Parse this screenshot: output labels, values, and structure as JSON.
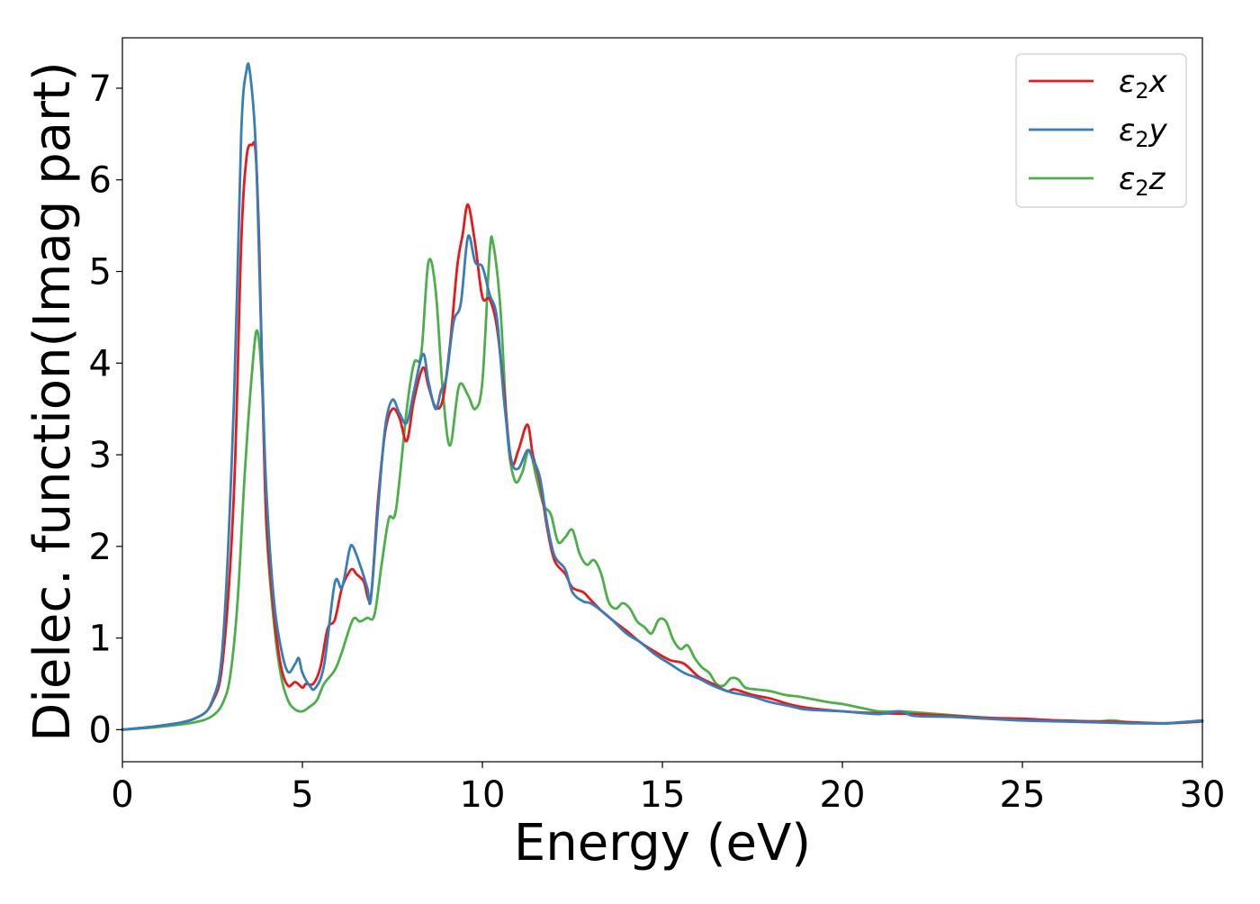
{
  "chart_data": {
    "type": "line",
    "xlabel": "Energy (eV)",
    "ylabel": "Dielec. function(Imag part)",
    "xlim": [
      0,
      30
    ],
    "ylim": [
      -0.35,
      7.55
    ],
    "xticks": [
      0,
      5,
      10,
      15,
      20,
      25,
      30
    ],
    "yticks": [
      0,
      1,
      2,
      3,
      4,
      5,
      6,
      7
    ],
    "grid": false,
    "legend_position": "top-right",
    "series": [
      {
        "name": "ε₂x",
        "legend_main": "ε",
        "legend_sub": "2",
        "legend_tail": "x",
        "color": "#e41a1c",
        "x": [
          0,
          1,
          2,
          2.5,
          2.8,
          3.1,
          3.3,
          3.45,
          3.6,
          3.7,
          3.8,
          3.9,
          4.0,
          4.2,
          4.4,
          4.6,
          4.8,
          5.0,
          5.1,
          5.3,
          5.5,
          5.7,
          5.9,
          6.1,
          6.3,
          6.4,
          6.5,
          6.7,
          6.9,
          7.1,
          7.3,
          7.5,
          7.7,
          7.9,
          8.1,
          8.35,
          8.5,
          8.7,
          8.9,
          9.1,
          9.3,
          9.45,
          9.6,
          9.8,
          10.0,
          10.2,
          10.4,
          10.6,
          10.8,
          11.0,
          11.25,
          11.4,
          11.6,
          11.8,
          12.0,
          12.3,
          12.5,
          12.8,
          13.0,
          13.3,
          13.6,
          14.0,
          14.4,
          14.8,
          15.2,
          15.6,
          16.0,
          16.4,
          16.8,
          17.0,
          17.5,
          18.0,
          18.5,
          19.0,
          20.0,
          21.0,
          22.0,
          23.0,
          24.0,
          25.0,
          26.0,
          27.0,
          28.0,
          29.0,
          30.0
        ],
        "y": [
          0,
          0.04,
          0.12,
          0.3,
          0.8,
          2.6,
          5.3,
          6.25,
          6.38,
          6.3,
          5.3,
          3.6,
          2.3,
          1.3,
          0.7,
          0.48,
          0.52,
          0.46,
          0.5,
          0.5,
          0.68,
          1.1,
          1.2,
          1.55,
          1.72,
          1.75,
          1.7,
          1.62,
          1.45,
          2.5,
          3.25,
          3.5,
          3.4,
          3.15,
          3.6,
          3.95,
          3.75,
          3.52,
          3.6,
          4.2,
          5.05,
          5.4,
          5.73,
          5.3,
          4.72,
          4.7,
          4.4,
          3.7,
          2.92,
          3.05,
          3.33,
          3.0,
          2.7,
          2.2,
          1.85,
          1.7,
          1.55,
          1.5,
          1.42,
          1.3,
          1.2,
          1.08,
          0.95,
          0.85,
          0.76,
          0.72,
          0.58,
          0.5,
          0.42,
          0.44,
          0.38,
          0.34,
          0.28,
          0.24,
          0.2,
          0.18,
          0.17,
          0.15,
          0.13,
          0.12,
          0.1,
          0.09,
          0.08,
          0.07,
          0.09
        ]
      },
      {
        "name": "ε₂y",
        "legend_main": "ε",
        "legend_sub": "2",
        "legend_tail": "y",
        "color": "#377eb8",
        "x": [
          0,
          1,
          2,
          2.5,
          2.8,
          3.1,
          3.3,
          3.45,
          3.55,
          3.7,
          3.8,
          3.9,
          4.0,
          4.2,
          4.4,
          4.6,
          4.8,
          4.9,
          5.0,
          5.2,
          5.35,
          5.6,
          5.9,
          6.1,
          6.3,
          6.4,
          6.6,
          6.8,
          6.9,
          7.1,
          7.3,
          7.5,
          7.7,
          7.9,
          8.1,
          8.35,
          8.5,
          8.7,
          8.85,
          9.0,
          9.2,
          9.4,
          9.6,
          9.8,
          10.0,
          10.2,
          10.4,
          10.6,
          10.8,
          11.0,
          11.25,
          11.4,
          11.6,
          11.8,
          12.0,
          12.3,
          12.5,
          12.8,
          13.0,
          13.3,
          13.6,
          14.0,
          14.4,
          14.8,
          15.2,
          15.6,
          16.0,
          16.4,
          16.8,
          17.0,
          17.5,
          18.0,
          18.5,
          19.0,
          20.0,
          21.0,
          21.6,
          22.0,
          23.0,
          24.0,
          25.0,
          26.0,
          27.0,
          28.0,
          29.0,
          30.0
        ],
        "y": [
          0,
          0.04,
          0.12,
          0.32,
          1.0,
          3.6,
          6.5,
          7.2,
          7.15,
          6.4,
          5.1,
          3.7,
          2.6,
          1.45,
          0.9,
          0.63,
          0.72,
          0.78,
          0.62,
          0.48,
          0.45,
          0.7,
          1.6,
          1.55,
          1.95,
          2.0,
          1.8,
          1.55,
          1.42,
          2.4,
          3.3,
          3.6,
          3.45,
          3.35,
          3.7,
          4.1,
          3.8,
          3.5,
          3.7,
          3.85,
          4.45,
          4.65,
          5.38,
          5.1,
          5.05,
          4.75,
          4.5,
          3.6,
          2.95,
          2.85,
          3.05,
          2.95,
          2.75,
          2.25,
          1.9,
          1.75,
          1.5,
          1.4,
          1.38,
          1.3,
          1.2,
          1.05,
          0.95,
          0.82,
          0.72,
          0.62,
          0.56,
          0.48,
          0.42,
          0.4,
          0.36,
          0.3,
          0.26,
          0.22,
          0.2,
          0.17,
          0.2,
          0.15,
          0.14,
          0.12,
          0.1,
          0.09,
          0.08,
          0.07,
          0.07,
          0.1
        ]
      },
      {
        "name": "ε₂z",
        "legend_main": "ε",
        "legend_sub": "2",
        "legend_tail": "z",
        "color": "#4daf4a",
        "x": [
          0,
          1,
          2,
          2.5,
          2.8,
          3.0,
          3.2,
          3.4,
          3.6,
          3.75,
          3.9,
          4.0,
          4.2,
          4.4,
          4.6,
          4.8,
          5.0,
          5.2,
          5.4,
          5.6,
          5.9,
          6.1,
          6.4,
          6.6,
          6.8,
          7.0,
          7.2,
          7.4,
          7.6,
          7.9,
          8.1,
          8.3,
          8.5,
          8.7,
          8.9,
          9.1,
          9.35,
          9.6,
          9.8,
          10.0,
          10.2,
          10.3,
          10.5,
          10.7,
          10.9,
          11.1,
          11.3,
          11.5,
          11.7,
          11.9,
          12.1,
          12.3,
          12.5,
          12.7,
          12.9,
          13.1,
          13.3,
          13.5,
          13.7,
          13.9,
          14.1,
          14.3,
          14.5,
          14.7,
          14.9,
          15.1,
          15.3,
          15.5,
          15.7,
          15.9,
          16.1,
          16.3,
          16.5,
          16.7,
          16.9,
          17.1,
          17.3,
          17.6,
          18.0,
          18.4,
          18.8,
          19.2,
          19.6,
          20.0,
          20.5,
          21.0,
          21.6,
          22.0,
          23.0,
          24.0,
          25.0,
          26.0,
          27.0,
          27.5,
          28.0,
          29.0,
          30.0
        ],
        "y": [
          0,
          0.03,
          0.08,
          0.15,
          0.3,
          0.6,
          1.4,
          2.8,
          3.9,
          4.35,
          3.6,
          2.2,
          1.2,
          0.6,
          0.32,
          0.22,
          0.2,
          0.25,
          0.32,
          0.5,
          0.65,
          0.85,
          1.2,
          1.18,
          1.22,
          1.25,
          1.8,
          2.3,
          2.4,
          3.5,
          4.0,
          4.1,
          5.1,
          4.8,
          3.7,
          3.1,
          3.75,
          3.65,
          3.5,
          3.8,
          5.2,
          5.3,
          4.6,
          3.2,
          2.72,
          2.8,
          3.05,
          2.75,
          2.45,
          2.35,
          2.05,
          2.1,
          2.18,
          1.92,
          1.8,
          1.85,
          1.7,
          1.4,
          1.32,
          1.38,
          1.32,
          1.18,
          1.12,
          1.05,
          1.2,
          1.18,
          0.98,
          0.88,
          0.92,
          0.78,
          0.68,
          0.62,
          0.5,
          0.48,
          0.56,
          0.55,
          0.46,
          0.44,
          0.42,
          0.38,
          0.36,
          0.33,
          0.3,
          0.28,
          0.24,
          0.2,
          0.2,
          0.19,
          0.16,
          0.13,
          0.11,
          0.1,
          0.09,
          0.1,
          0.08,
          0.07,
          0.1
        ]
      }
    ]
  }
}
